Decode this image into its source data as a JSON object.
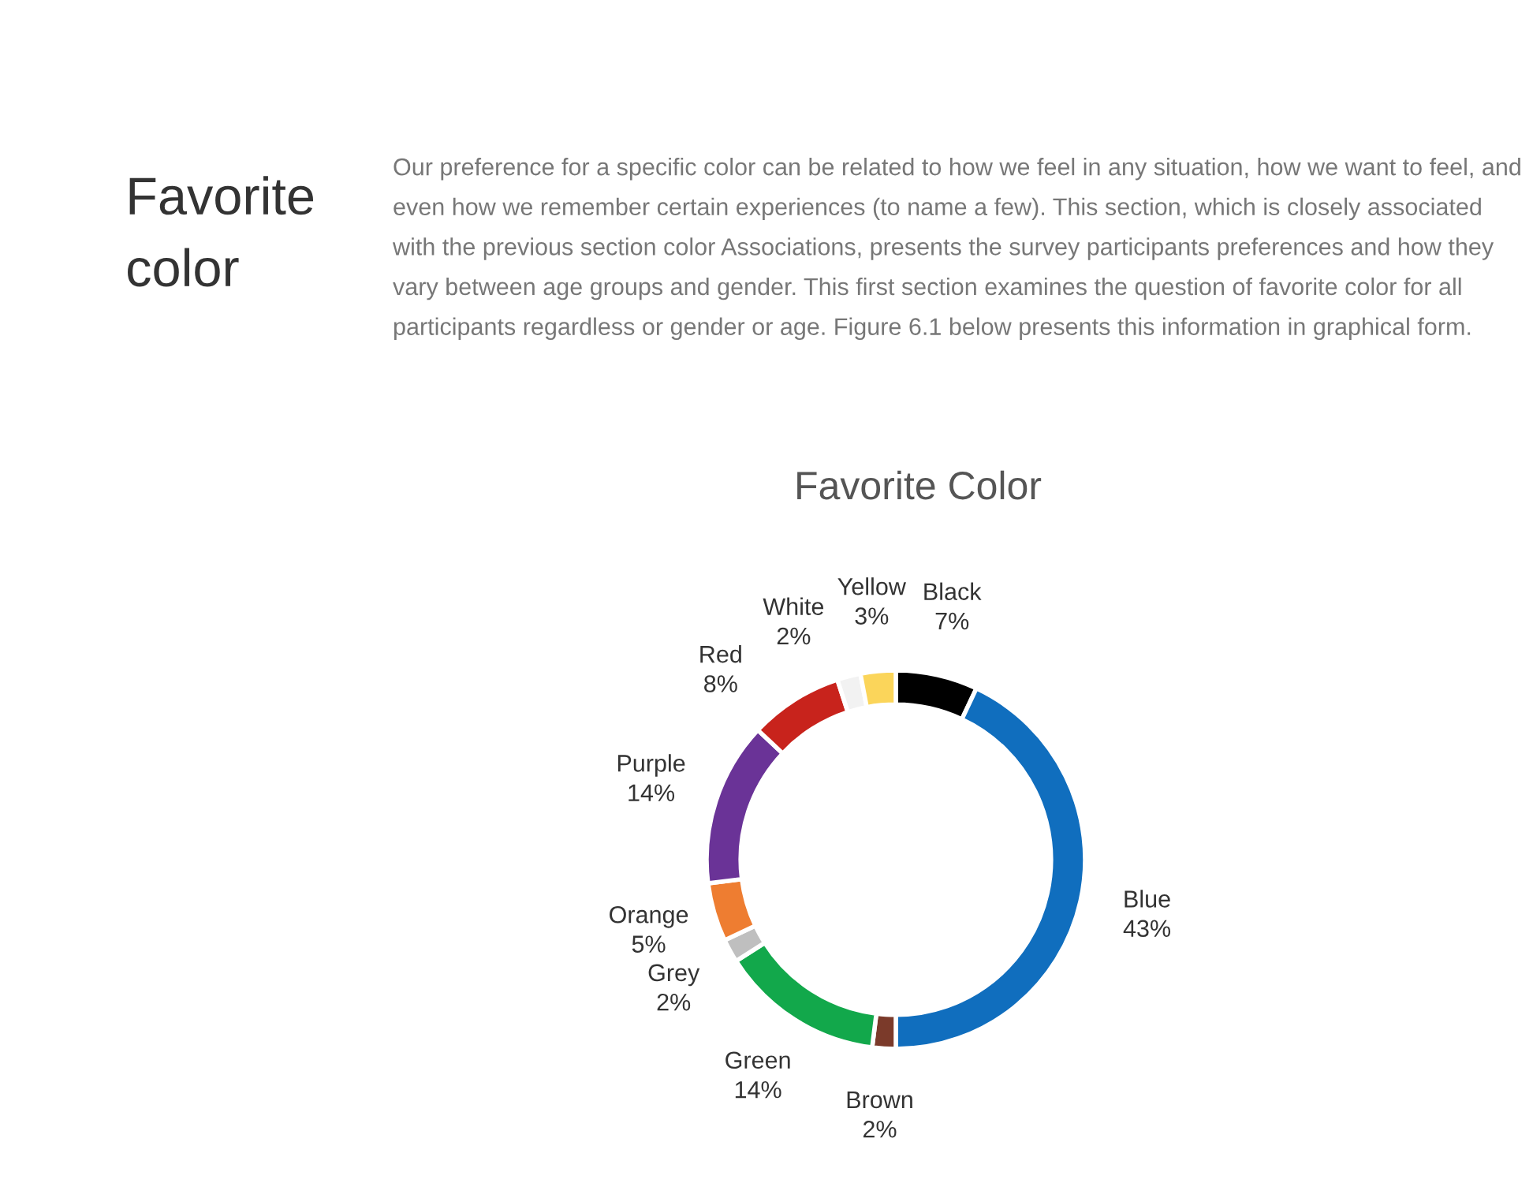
{
  "chart_data": {
    "type": "donut",
    "title": "Favorite Color",
    "annotations": [
      "Favorite color",
      "Our preference for a specific color can be related to how we feel in any situation, how we want to feel, and even how we remember certain experiences (to name a few). This section, which is closely associated with the previous section color Associations, presents the survey participants preferences and how they vary between age groups and gender. This first section examines the question of favorite color for all participants regardless or gender or age. Figure 6.1 below presents this information in graphical form."
    ],
    "categories": [
      "Black",
      "Blue",
      "Brown",
      "Green",
      "Grey",
      "Orange",
      "Purple",
      "Red",
      "White",
      "Yellow"
    ],
    "values": [
      7,
      43,
      2,
      14,
      2,
      5,
      14,
      8,
      2,
      3
    ],
    "colors": [
      "#000000",
      "#106ebe",
      "#7b3a2a",
      "#12a84b",
      "#bfbfbf",
      "#ee7d31",
      "#6a3397",
      "#c8231c",
      "#f2f2f2",
      "#fbd55a"
    ],
    "value_labels": [
      "7%",
      "43%",
      "2%",
      "14%",
      "2%",
      "5%",
      "14%",
      "8%",
      "2%",
      "3%"
    ]
  }
}
